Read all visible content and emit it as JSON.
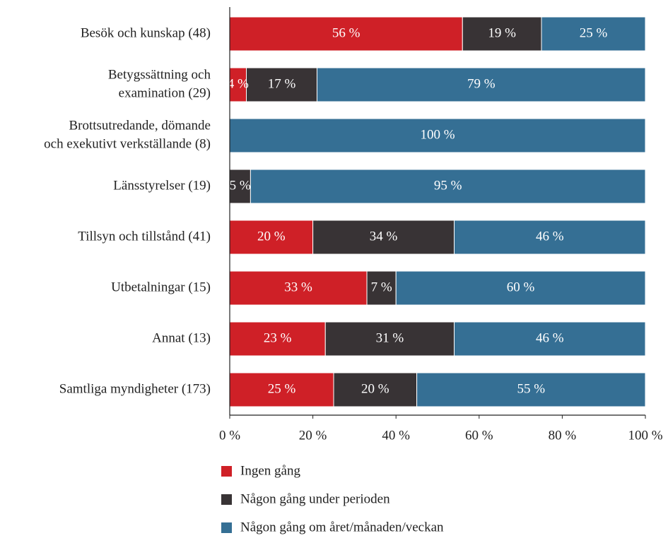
{
  "chart_data": {
    "type": "stacked-bar-horizontal",
    "categories": [
      "Besök och kunskap (48)",
      [
        "Betygssättning och",
        "examination (29)"
      ],
      [
        "Brottsutredande, dömande",
        "och exekutivt verkställande (8)"
      ],
      "Länsstyrelser (19)",
      "Tillsyn och tillstånd (41)",
      "Utbetalningar (15)",
      "Annat (13)",
      "Samtliga myndigheter (173)"
    ],
    "series": [
      {
        "name": "Ingen gång",
        "color": "#cf2027",
        "values": [
          56,
          4,
          0,
          0,
          20,
          33,
          23,
          25
        ],
        "value_labels": [
          "56 %",
          "4 %",
          null,
          null,
          "20 %",
          "33 %",
          "23 %",
          "25 %"
        ]
      },
      {
        "name": "Någon gång under perioden",
        "color": "#383335",
        "values": [
          19,
          17,
          0,
          5,
          34,
          7,
          31,
          20
        ],
        "value_labels": [
          "19 %",
          "17 %",
          null,
          "5 %",
          "34 %",
          "7 %",
          "31 %",
          "20 %"
        ]
      },
      {
        "name": "Någon gång om året/månaden/veckan",
        "color": "#356f94",
        "values": [
          25,
          79,
          100,
          95,
          46,
          60,
          46,
          55
        ],
        "value_labels": [
          "25 %",
          "79 %",
          "100 %",
          "95 %",
          "46 %",
          "60 %",
          "46 %",
          "55 %"
        ]
      }
    ],
    "xlim": [
      0,
      100
    ],
    "xticks": [
      {
        "value": 0,
        "label": "0 %"
      },
      {
        "value": 20,
        "label": "20 %"
      },
      {
        "value": 40,
        "label": "40 %"
      },
      {
        "value": 60,
        "label": "60 %"
      },
      {
        "value": 80,
        "label": "80 %"
      },
      {
        "value": 100,
        "label": "100 %"
      }
    ]
  }
}
